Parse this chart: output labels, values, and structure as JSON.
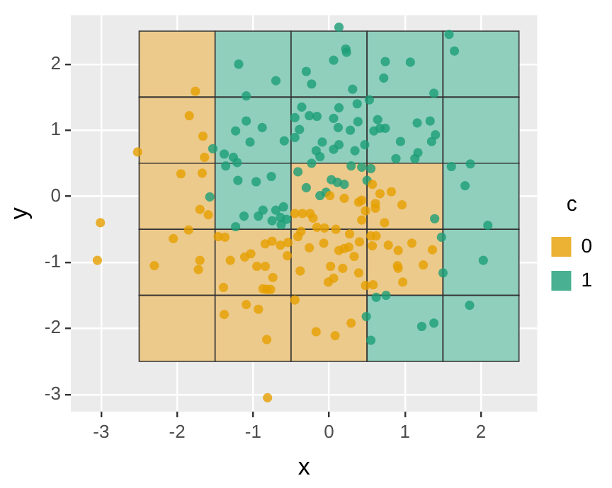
{
  "chart_data": {
    "type": "scatter",
    "xlabel": "x",
    "ylabel": "y",
    "legend_title": "c",
    "legend": "right",
    "grid": true,
    "marker": "circle",
    "xlim": [
      -3.4,
      2.74
    ],
    "ylim": [
      -3.26,
      2.74
    ],
    "xticks": [
      -3,
      -2,
      -1,
      0,
      1,
      2
    ],
    "yticks": [
      -3,
      -2,
      -1,
      0,
      1,
      2
    ],
    "series": [
      {
        "type": "bar",
        "colors": [
          "#ecca8b",
          "#8fcfbc",
          "#8fcfbc",
          "#8fcfbc",
          "#8fcfbc"
        ],
        "x": [
          -2,
          -1,
          0,
          1,
          2
        ],
        "base": [
          1.5,
          1.5,
          1.5,
          1.5,
          1.5
        ],
        "values": [
          1,
          1,
          1,
          1,
          1
        ]
      },
      {
        "type": "bar",
        "colors": [
          "#ecca8b",
          "#8fcfbc",
          "#8fcfbc",
          "#8fcfbc",
          "#8fcfbc"
        ],
        "x": [
          -2,
          -1,
          0,
          1,
          2
        ],
        "base": [
          0.5,
          0.5,
          0.5,
          0.5,
          0.5
        ],
        "values": [
          1,
          1,
          1,
          1,
          1
        ]
      },
      {
        "type": "bar",
        "colors": [
          "#ecca8b",
          "#8fcfbc",
          "#ecca8b",
          "#ecca8b",
          "#8fcfbc"
        ],
        "x": [
          -2,
          -1,
          0,
          1,
          2
        ],
        "base": [
          -0.5,
          -0.5,
          -0.5,
          -0.5,
          -0.5
        ],
        "values": [
          1,
          1,
          1,
          1,
          1
        ]
      },
      {
        "type": "bar",
        "colors": [
          "#ecca8b",
          "#ecca8b",
          "#ecca8b",
          "#ecca8b",
          "#8fcfbc"
        ],
        "x": [
          -2,
          -1,
          0,
          1,
          2
        ],
        "base": [
          -1.5,
          -1.5,
          -1.5,
          -1.5,
          -1.5
        ],
        "values": [
          1,
          1,
          1,
          1,
          1
        ]
      },
      {
        "type": "bar",
        "colors": [
          "#ecca8b",
          "#ecca8b",
          "#ecca8b",
          "#8fcfbc",
          "#8fcfbc"
        ],
        "x": [
          -2,
          -1,
          0,
          1,
          2
        ],
        "base": [
          -2.5,
          -2.5,
          -2.5,
          -2.5,
          -2.5
        ],
        "values": [
          1,
          1,
          1,
          1,
          1
        ]
      },
      {
        "name": "0",
        "color": "#e69f00",
        "x": [
          -1.76,
          -1.84,
          -1.66,
          -2.52,
          -1.64,
          -1.95,
          -1.67,
          -1.7,
          0.57,
          0.82,
          0.67,
          0.01,
          0.2,
          0.43,
          0.39,
          0.61,
          0.96,
          0.61,
          0.48,
          -3.01,
          -3.05,
          -1.59,
          -0.45,
          -0.35,
          -1.85,
          -2.05,
          -1.46,
          -1.37,
          -0.84,
          -0.75,
          -0.64,
          -0.54,
          -0.41,
          -0.37,
          -1.03,
          -1.11,
          -0.55,
          -1.7,
          -1.72,
          -2.3,
          -1.3,
          -0.95,
          -0.84,
          -0.38,
          -0.74,
          -1.39,
          -0.87,
          -0.82,
          -0.77,
          -0.45,
          -1.09,
          -0.93,
          -1.38,
          -0.82,
          -0.81,
          -0.25,
          -0.21,
          -0.16,
          -0.06,
          0.09,
          0.27,
          0.43,
          0.73,
          0.4,
          0.55,
          0.62,
          0.57,
          0.78,
          0.91,
          1.09,
          1.36,
          0.26,
          0.2,
          0.13,
          -0.07,
          -0.26,
          0.33,
          0.02,
          0.18,
          0.39,
          -0.01,
          0.06,
          0.9,
          0.91,
          1.24,
          0.97,
          0.48,
          0.58,
          0.29,
          -0.17,
          0.08
        ],
        "values": [
          1.59,
          1.22,
          0.91,
          0.67,
          0.59,
          0.34,
          0.35,
          -0.2,
          0.18,
          0.07,
          0.04,
          0.01,
          -0.03,
          -0.06,
          -0.09,
          -0.11,
          -0.13,
          -0.18,
          -0.22,
          -0.4,
          -0.97,
          -0.28,
          -0.26,
          -0.26,
          -0.51,
          -0.64,
          -0.61,
          -0.62,
          -0.72,
          -0.68,
          -0.74,
          -0.7,
          -0.61,
          -0.53,
          -0.87,
          -0.92,
          -0.9,
          -0.97,
          -1.11,
          -1.05,
          -0.97,
          -1.06,
          -1.06,
          -1.13,
          -1.23,
          -1.38,
          -1.4,
          -1.41,
          -1.41,
          -1.57,
          -1.64,
          -1.71,
          -1.79,
          -2.17,
          -3.05,
          -0.26,
          -0.33,
          -0.47,
          -0.48,
          -0.5,
          -0.57,
          -0.36,
          -0.4,
          -0.69,
          -0.6,
          -0.6,
          -0.75,
          -0.74,
          -0.82,
          -0.71,
          -0.81,
          -0.77,
          -0.79,
          -0.82,
          -0.71,
          -0.78,
          -0.91,
          -1.06,
          -1.09,
          -1.16,
          -1.3,
          -1.24,
          -1.05,
          -1.09,
          -1.04,
          -1.3,
          -1.35,
          -1.34,
          -1.92,
          -2.05,
          -2.11
        ]
      },
      {
        "name": "1",
        "color": "#1b9e77",
        "x": [
          -1.19,
          -0.7,
          -1.09,
          -1.09,
          -1.23,
          -0.88,
          -1.04,
          -0.59,
          -0.36,
          -0.45,
          -0.39,
          -0.45,
          -0.3,
          -1.53,
          -1.38,
          -1.26,
          -1.21,
          -1.36,
          -1.2,
          -0.96,
          -0.76,
          -1.57,
          -0.41,
          -0.3,
          -0.6,
          -0.87,
          0.13,
          0.22,
          0.23,
          0.06,
          0.74,
          1.07,
          1.58,
          1.65,
          -0.23,
          0.72,
          0.31,
          1.38,
          0.53,
          0.37,
          -0.26,
          -0.16,
          0.13,
          0.06,
          0.38,
          0.12,
          0.28,
          0.64,
          0.59,
          0.67,
          0.74,
          1.16,
          1.33,
          1.4,
          1.35,
          0.94,
          -0.09,
          -0.17,
          -0.12,
          0.06,
          0.13,
          0.34,
          0.47,
          0.88,
          1.13,
          1.17,
          1.61,
          1.86,
          1.79,
          -0.23,
          0.29,
          0.43,
          0.55,
          0.03,
          0.11,
          0.2,
          0.5,
          -0.12,
          -0.04,
          -1.12,
          -0.93,
          -0.7,
          -0.75,
          -0.64,
          -0.56,
          -0.63,
          -1.23,
          1.39,
          2.09,
          1.48,
          2.03,
          1.5,
          0.62,
          0.75,
          1.85,
          0.49,
          1.22,
          1.38,
          0.55
        ],
        "values": [
          2.0,
          1.75,
          1.52,
          1.14,
          0.99,
          1.04,
          0.82,
          0.84,
          1.35,
          1.19,
          1.01,
          0.89,
          1.89,
          0.72,
          0.64,
          0.59,
          0.51,
          0.46,
          0.24,
          0.22,
          0.3,
          -0.01,
          0.37,
          0.13,
          -0.16,
          -0.21,
          2.56,
          2.23,
          2.18,
          2.06,
          2.04,
          2.03,
          2.45,
          2.2,
          1.7,
          1.79,
          1.62,
          1.56,
          1.46,
          1.4,
          1.22,
          1.21,
          1.34,
          1.18,
          1.13,
          1.04,
          1.0,
          1.16,
          0.99,
          1.03,
          1.03,
          1.11,
          1.14,
          0.93,
          0.83,
          0.83,
          0.82,
          0.69,
          0.6,
          0.71,
          0.78,
          0.69,
          0.78,
          0.57,
          0.57,
          0.66,
          0.45,
          0.49,
          0.16,
          0.5,
          0.46,
          0.44,
          0.42,
          0.25,
          0.21,
          0.18,
          0.24,
          0.01,
          0.06,
          -0.3,
          -0.3,
          -0.21,
          -0.37,
          -0.32,
          -0.35,
          -0.43,
          -0.46,
          -0.34,
          -0.44,
          -0.62,
          -0.97,
          -1.16,
          -1.53,
          -1.5,
          -1.65,
          -1.82,
          -1.97,
          -1.92,
          -2.18
        ]
      }
    ]
  }
}
